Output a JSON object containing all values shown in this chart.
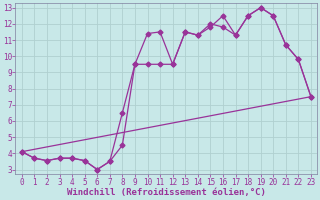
{
  "background_color": "#c8e8e8",
  "grid_color": "#b0d0d0",
  "line_color": "#993399",
  "spine_color": "#8080a0",
  "xlabel": "Windchill (Refroidissement éolien,°C)",
  "xlim": [
    -0.5,
    23.5
  ],
  "ylim": [
    2.7,
    13.3
  ],
  "yticks": [
    3,
    4,
    5,
    6,
    7,
    8,
    9,
    10,
    11,
    12,
    13
  ],
  "xticks": [
    0,
    1,
    2,
    3,
    4,
    5,
    6,
    7,
    8,
    9,
    10,
    11,
    12,
    13,
    14,
    15,
    16,
    17,
    18,
    19,
    20,
    21,
    22,
    23
  ],
  "line1_x": [
    0,
    1,
    2,
    3,
    4,
    5,
    6,
    7,
    8,
    9,
    10,
    11,
    12,
    13,
    14,
    15,
    16,
    17,
    18,
    19,
    20,
    21,
    22,
    23
  ],
  "line1_y": [
    4.1,
    3.7,
    3.55,
    3.7,
    3.7,
    3.55,
    3.0,
    3.5,
    6.5,
    9.5,
    11.4,
    11.5,
    9.5,
    11.5,
    11.3,
    12.0,
    11.8,
    11.3,
    12.5,
    13.0,
    12.5,
    10.7,
    9.8,
    7.5
  ],
  "line2_x": [
    0,
    1,
    2,
    3,
    4,
    5,
    6,
    7,
    8,
    9,
    10,
    11,
    12,
    13,
    14,
    15,
    16,
    17,
    18,
    19,
    20,
    21,
    22,
    23
  ],
  "line2_y": [
    4.1,
    3.7,
    3.55,
    3.7,
    3.7,
    3.55,
    3.0,
    3.5,
    4.5,
    9.5,
    9.5,
    9.5,
    9.5,
    11.5,
    11.3,
    11.8,
    12.5,
    11.3,
    12.5,
    13.0,
    12.5,
    10.7,
    9.8,
    7.5
  ],
  "line3_x": [
    0,
    23
  ],
  "line3_y": [
    4.1,
    7.5
  ],
  "marker": "D",
  "markersize": 2.5,
  "linewidth": 0.9,
  "xlabel_fontsize": 6.5,
  "tick_fontsize": 5.5
}
